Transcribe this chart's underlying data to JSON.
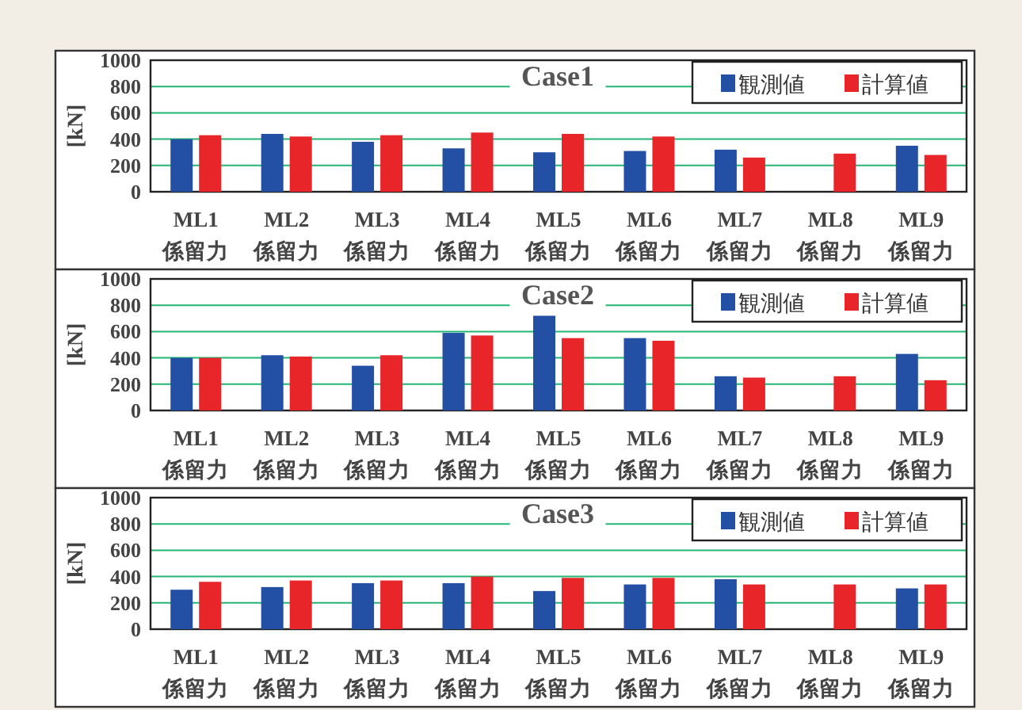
{
  "chart_data": [
    {
      "type": "bar",
      "title": "Case1",
      "ylabel": "[kN]",
      "categories": [
        "ML1\n係留力",
        "ML2\n係留力",
        "ML3\n係留力",
        "ML4\n係留力",
        "ML5\n係留力",
        "ML6\n係留力",
        "ML7\n係留力",
        "ML8\n係留力",
        "ML9\n係留力"
      ],
      "series": [
        {
          "name": "観測値",
          "color": "#2350a4",
          "values": [
            400,
            440,
            380,
            330,
            300,
            310,
            320,
            null,
            350
          ]
        },
        {
          "name": "計算値",
          "color": "#e8262a",
          "values": [
            430,
            420,
            430,
            450,
            440,
            420,
            260,
            290,
            280
          ]
        }
      ],
      "ylim": [
        0,
        1000
      ],
      "yticks": [
        0,
        200,
        400,
        600,
        800,
        1000
      ],
      "grid": "y",
      "legend": "top right"
    },
    {
      "type": "bar",
      "title": "Case2",
      "ylabel": "[kN]",
      "categories": [
        "ML1\n係留力",
        "ML2\n係留力",
        "ML3\n係留力",
        "ML4\n係留力",
        "ML5\n係留力",
        "ML6\n係留力",
        "ML7\n係留力",
        "ML8\n係留力",
        "ML9\n係留力"
      ],
      "series": [
        {
          "name": "観測値",
          "color": "#2350a4",
          "values": [
            400,
            420,
            340,
            590,
            720,
            550,
            260,
            null,
            430
          ]
        },
        {
          "name": "計算値",
          "color": "#e8262a",
          "values": [
            400,
            410,
            420,
            570,
            550,
            530,
            250,
            260,
            230
          ]
        }
      ],
      "ylim": [
        0,
        1000
      ],
      "yticks": [
        0,
        200,
        400,
        600,
        800,
        1000
      ],
      "grid": "y",
      "legend": "top right"
    },
    {
      "type": "bar",
      "title": "Case3",
      "ylabel": "[kN]",
      "categories": [
        "ML1\n係留力",
        "ML2\n係留力",
        "ML3\n係留力",
        "ML4\n係留力",
        "ML5\n係留力",
        "ML6\n係留力",
        "ML7\n係留力",
        "ML8\n係留力",
        "ML9\n係留力"
      ],
      "series": [
        {
          "name": "観測値",
          "color": "#2350a4",
          "values": [
            300,
            320,
            350,
            350,
            290,
            340,
            380,
            null,
            310
          ]
        },
        {
          "name": "計算値",
          "color": "#e8262a",
          "values": [
            360,
            370,
            370,
            400,
            390,
            390,
            340,
            340,
            340
          ]
        }
      ],
      "ylim": [
        0,
        1000
      ],
      "yticks": [
        0,
        200,
        400,
        600,
        800,
        1000
      ],
      "grid": "y",
      "legend": "top right"
    }
  ]
}
